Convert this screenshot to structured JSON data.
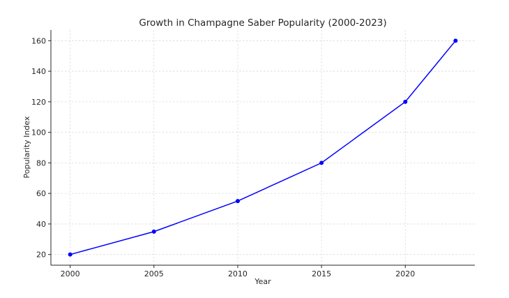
{
  "chart_data": {
    "type": "line",
    "title": "Growth in Champagne Saber Popularity (2000-2023)",
    "xlabel": "Year",
    "ylabel": "Popularity Index",
    "x": [
      2000,
      2005,
      2010,
      2015,
      2020,
      2023
    ],
    "series": [
      {
        "values": [
          20,
          35,
          55,
          80,
          120,
          160
        ],
        "color": "#0000ff"
      }
    ],
    "xticks": [
      2000,
      2005,
      2010,
      2015,
      2020
    ],
    "yticks": [
      20,
      40,
      60,
      80,
      100,
      120,
      140,
      160
    ],
    "xlim": [
      1998.85,
      2024.15
    ],
    "ylim": [
      13,
      167
    ],
    "grid": true,
    "markers": true
  }
}
